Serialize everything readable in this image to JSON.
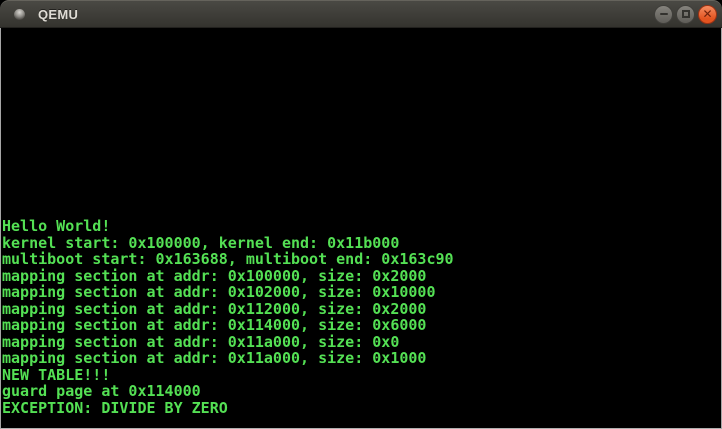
{
  "window": {
    "title": "QEMU",
    "controls": {
      "minimize_icon": "minimize-icon",
      "maximize_icon": "maximize-icon",
      "close_icon": "close-icon",
      "close_glyph": "✕"
    }
  },
  "colors": {
    "titlebar_background": "#403f3a",
    "title_text": "#dfdcd5",
    "close_button": "#e35420",
    "window_border": "#a6a6a6",
    "terminal_background": "#000000",
    "terminal_green": "#54e054"
  },
  "terminal": {
    "lines": [
      "Hello World!",
      "kernel start: 0x100000, kernel end: 0x11b000",
      "multiboot start: 0x163688, multiboot end: 0x163c90",
      "mapping section at addr: 0x100000, size: 0x2000",
      "mapping section at addr: 0x102000, size: 0x10000",
      "mapping section at addr: 0x112000, size: 0x2000",
      "mapping section at addr: 0x114000, size: 0x6000",
      "mapping section at addr: 0x11a000, size: 0x0",
      "mapping section at addr: 0x11a000, size: 0x1000",
      "NEW TABLE!!!",
      "guard page at 0x114000",
      "EXCEPTION: DIVIDE BY ZERO"
    ]
  }
}
